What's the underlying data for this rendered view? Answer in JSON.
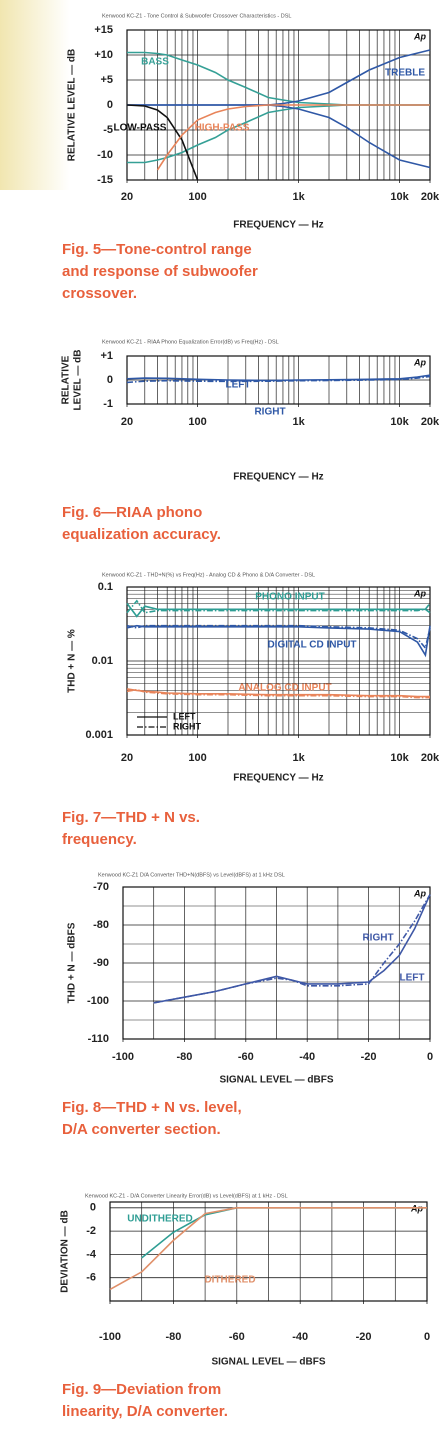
{
  "chart_data": [
    {
      "type": "line",
      "title": "Kenwood KC-Z1 -   Tone Control & Subwoofer Crossover Characteristics   -  DSL",
      "logo": "Ap",
      "xlabel": "FREQUENCY — Hz",
      "ylabel": "RELATIVE LEVEL — dB",
      "caption": [
        "Fig. 5—Tone-control range",
        "and response of subwoofer",
        "crossover."
      ],
      "xlog": true,
      "xlim": [
        20,
        20000
      ],
      "xticks": [
        20,
        100,
        {
          "value": 1000,
          "label": "1k"
        },
        {
          "value": 10000,
          "label": "10k"
        },
        {
          "value": 20000,
          "label": "20k"
        }
      ],
      "xgrid": [
        20,
        30,
        40,
        50,
        60,
        70,
        80,
        90,
        100,
        200,
        300,
        400,
        500,
        600,
        700,
        800,
        900,
        1000,
        2000,
        3000,
        4000,
        5000,
        6000,
        7000,
        8000,
        9000,
        10000,
        20000
      ],
      "ylim": [
        -15,
        15
      ],
      "yticks": [
        {
          "value": 15,
          "label": "+15"
        },
        {
          "value": 10,
          "label": "+10"
        },
        {
          "value": 5,
          "label": "+5"
        },
        0,
        -5,
        -10,
        -15
      ],
      "x": [
        20,
        30,
        40,
        50,
        70,
        100,
        150,
        200,
        300,
        500,
        700,
        1000,
        2000,
        3000,
        5000,
        10000,
        20000
      ],
      "series": [
        {
          "name": "BASS",
          "color": "#35a096",
          "values": [
            10.5,
            10.5,
            10.3,
            10,
            9,
            8,
            6.5,
            5,
            3.5,
            1.5,
            1,
            0.5,
            0.2,
            0,
            0,
            0,
            0
          ]
        },
        {
          "color": "#35a096",
          "values": [
            -11.5,
            -11.5,
            -11,
            -10.5,
            -9.5,
            -8,
            -6.5,
            -5,
            -3.5,
            -1.5,
            -1,
            -0.5,
            -0.2,
            0,
            0,
            0,
            0
          ]
        },
        {
          "name": "TREBLE",
          "color": "#2f58a6",
          "values": [
            0,
            0,
            0,
            0,
            0,
            0,
            0,
            0,
            0,
            0,
            0.3,
            0.8,
            2.5,
            4.5,
            7,
            9.5,
            11
          ]
        },
        {
          "color": "#2f58a6",
          "values": [
            0,
            0,
            0,
            0,
            0,
            0,
            0,
            0,
            0,
            0,
            -0.3,
            -0.8,
            -2.5,
            -4.5,
            -7.5,
            -11,
            -12.5
          ]
        },
        {
          "name": "LOW-PASS",
          "color": "#111111",
          "values": [
            0,
            -0.2,
            -1,
            -2.5,
            -7,
            -15,
            null,
            null,
            null,
            null,
            null,
            null,
            null,
            null,
            null,
            null,
            null
          ]
        },
        {
          "name": "HIGH-PASS",
          "color": "#e8845a",
          "values": [
            null,
            null,
            -13,
            -10,
            -6,
            -3,
            -1.5,
            -0.8,
            -0.3,
            0,
            0,
            0,
            0,
            0,
            0,
            0,
            0
          ]
        }
      ]
    },
    {
      "type": "line",
      "title": "Kenwood KC-Z1 -   RIAA Phono Equalization Error(dB) vs Freq(Hz)  -  DSL",
      "logo": "Ap",
      "xlabel": "FREQUENCY — Hz",
      "ylabel": [
        "RELATIVE",
        "LEVEL — dB"
      ],
      "caption": [
        "Fig. 6—RIAA phono",
        "equalization accuracy."
      ],
      "xlog": true,
      "xlim": [
        20,
        20000
      ],
      "xticks": [
        20,
        100,
        {
          "value": 1000,
          "label": "1k"
        },
        {
          "value": 10000,
          "label": "10k"
        },
        {
          "value": 20000,
          "label": "20k"
        }
      ],
      "xgrid": [
        20,
        30,
        40,
        50,
        60,
        70,
        80,
        90,
        100,
        200,
        300,
        400,
        500,
        600,
        700,
        800,
        900,
        1000,
        2000,
        3000,
        4000,
        5000,
        6000,
        7000,
        8000,
        9000,
        10000,
        20000
      ],
      "ylim": [
        -1,
        1
      ],
      "yticks": [
        {
          "value": 1,
          "label": "+1"
        },
        0,
        -1
      ],
      "x": [
        20,
        30,
        50,
        100,
        200,
        500,
        1000,
        2000,
        5000,
        10000,
        15000,
        20000
      ],
      "series": [
        {
          "name": "LEFT",
          "color": "#2f58a6",
          "values": [
            0.05,
            0.08,
            0.07,
            0.03,
            0,
            -0.02,
            0,
            0.01,
            0.03,
            0.05,
            0.12,
            0.2
          ]
        },
        {
          "name": "RIGHT",
          "color": "#2f58a6",
          "dash": "dash-dot",
          "values": [
            -0.1,
            -0.05,
            -0.03,
            -0.05,
            -0.06,
            -0.05,
            -0.03,
            -0.02,
            0,
            0.02,
            0.08,
            0.15
          ]
        }
      ]
    },
    {
      "type": "line",
      "title": "Kenwood KC-Z1 -  THD+N(%) vs Freq(Hz) - Analog CD & Phono & D/A Converter - DSL",
      "logo": "Ap",
      "xlabel": "FREQUENCY — Hz",
      "ylabel": "THD + N — %",
      "caption": [
        "Fig. 7—THD + N vs.",
        "frequency."
      ],
      "xlog": true,
      "xlim": [
        20,
        20000
      ],
      "xticks": [
        20,
        100,
        {
          "value": 1000,
          "label": "1k"
        },
        {
          "value": 10000,
          "label": "10k"
        },
        {
          "value": 20000,
          "label": "20k"
        }
      ],
      "xgrid": [
        20,
        30,
        40,
        50,
        60,
        70,
        80,
        90,
        100,
        200,
        300,
        400,
        500,
        600,
        700,
        800,
        900,
        1000,
        2000,
        3000,
        4000,
        5000,
        6000,
        7000,
        8000,
        9000,
        10000,
        20000
      ],
      "ylog": true,
      "ylim": [
        0.001,
        0.1
      ],
      "yticks": [
        0.1,
        0.01,
        0.001
      ],
      "ygrid": [
        0.002,
        0.003,
        0.004,
        0.005,
        0.006,
        0.007,
        0.008,
        0.009,
        0.02,
        0.03,
        0.04,
        0.05,
        0.06,
        0.07,
        0.08,
        0.09
      ],
      "legend": [
        {
          "label": "LEFT",
          "dash": "solid"
        },
        {
          "label": "RIGHT",
          "dash": "dash-dot"
        }
      ],
      "x": [
        20,
        25,
        30,
        40,
        50,
        100,
        200,
        500,
        1000,
        2000,
        5000,
        10000,
        15000,
        18000,
        20000
      ],
      "series": [
        {
          "name": "PHONO INPUT",
          "color": "#2f9e94",
          "values": [
            0.06,
            0.04,
            0.055,
            0.05,
            0.05,
            0.05,
            0.05,
            0.05,
            0.05,
            0.05,
            0.05,
            0.05,
            0.05,
            0.05,
            0.045
          ]
        },
        {
          "color": "#2f9e94",
          "dash": "dash-dot",
          "values": [
            0.045,
            0.065,
            0.045,
            0.048,
            0.048,
            0.048,
            0.048,
            0.048,
            0.048,
            0.048,
            0.048,
            0.048,
            0.048,
            0.05,
            0.06
          ]
        },
        {
          "name": "DIGITAL CD INPUT",
          "color": "#2f58a6",
          "values": [
            0.028,
            0.03,
            0.029,
            0.029,
            0.029,
            0.029,
            0.029,
            0.029,
            0.029,
            0.028,
            0.027,
            0.025,
            0.018,
            0.012,
            0.03
          ]
        },
        {
          "color": "#2f58a6",
          "dash": "dash-dot",
          "values": [
            0.03,
            0.028,
            0.03,
            0.03,
            0.03,
            0.03,
            0.03,
            0.03,
            0.03,
            0.029,
            0.028,
            0.026,
            0.02,
            0.015,
            0.028
          ]
        },
        {
          "name": "ANALOG CD INPUT",
          "color": "#e8845a",
          "values": [
            0.0042,
            0.004,
            0.0039,
            0.0038,
            0.0037,
            0.0036,
            0.0036,
            0.0035,
            0.0035,
            0.0035,
            0.0034,
            0.0034,
            0.0033,
            0.0033,
            0.0033
          ]
        },
        {
          "color": "#e8845a",
          "dash": "dash-dot",
          "values": [
            0.0039,
            0.0041,
            0.0038,
            0.0037,
            0.0036,
            0.0035,
            0.0035,
            0.0034,
            0.0034,
            0.0034,
            0.0033,
            0.0033,
            0.0032,
            0.0032,
            0.0032
          ]
        }
      ]
    },
    {
      "type": "line",
      "title": "Kenwood KC-Z1   D/A Converter THD+N(dBFS) vs Level(dBFS) at 1 kHz   DSL",
      "logo": "Ap",
      "xlabel": "SIGNAL LEVEL — dBFS",
      "ylabel": "THD + N — dBFS",
      "caption": [
        "Fig. 8—THD + N vs. level,",
        "D/A converter section."
      ],
      "xlim": [
        -100,
        0
      ],
      "xticks": [
        -100,
        -80,
        -60,
        -40,
        -20,
        0
      ],
      "xgrid": [
        -100,
        -90,
        -80,
        -70,
        -60,
        -50,
        -40,
        -30,
        -20,
        -10,
        0
      ],
      "ylim": [
        -110,
        -70
      ],
      "yticks": [
        -70,
        -80,
        -90,
        -100,
        -110
      ],
      "ygrid": [
        -75,
        -85,
        -95,
        -105
      ],
      "x": [
        -90,
        -80,
        -70,
        -60,
        -50,
        -45,
        -40,
        -30,
        -20,
        -15,
        -10,
        -5,
        0
      ],
      "series": [
        {
          "name": "LEFT",
          "color": "#3f58a6",
          "values": [
            -100.5,
            -99,
            -97.5,
            -95.5,
            -93.5,
            -94.5,
            -95.5,
            -95.5,
            -95,
            -92,
            -88,
            -81,
            -72
          ]
        },
        {
          "name": "RIGHT",
          "color": "#3f58a6",
          "dash": "dash-dot",
          "values": [
            -100.5,
            -99,
            -97.5,
            -95.5,
            -94,
            -94.5,
            -96,
            -96,
            -95.5,
            -90,
            -85,
            -79,
            -72
          ]
        }
      ]
    },
    {
      "type": "line",
      "title": "Kenwood KC-Z1 - D/A Converter Linearity Error(dB) vs Level(dBFS) at 1 kHz - DSL",
      "logo": "Ap",
      "xlabel": "SIGNAL LEVEL — dBFS",
      "ylabel": "DEVIATION — dB",
      "caption": [
        "Fig. 9—Deviation from",
        "linearity, D/A converter."
      ],
      "xlim": [
        -100,
        0
      ],
      "xticks": [
        -100,
        -80,
        -60,
        -40,
        -20,
        0
      ],
      "xgrid": [
        -100,
        -90,
        -80,
        -70,
        -60,
        -50,
        -40,
        -30,
        -20,
        -10,
        0
      ],
      "ylim": [
        -8,
        0.5
      ],
      "yticks": [
        0,
        -2,
        -4,
        -6
      ],
      "x": [
        -100,
        -90,
        -80,
        -70,
        -60,
        -50,
        -40,
        -30,
        -20,
        -10,
        0
      ],
      "series": [
        {
          "name": "UNDITHERED",
          "color": "#2f9e94",
          "values": [
            null,
            -4.3,
            -2.1,
            -0.6,
            0,
            0,
            0,
            0,
            0,
            0,
            0
          ]
        },
        {
          "name": "DITHERED",
          "color": "#e0906a",
          "values": [
            -7,
            -5.5,
            -2.8,
            -0.5,
            0,
            0,
            0,
            0,
            0,
            0,
            0
          ]
        }
      ]
    }
  ]
}
